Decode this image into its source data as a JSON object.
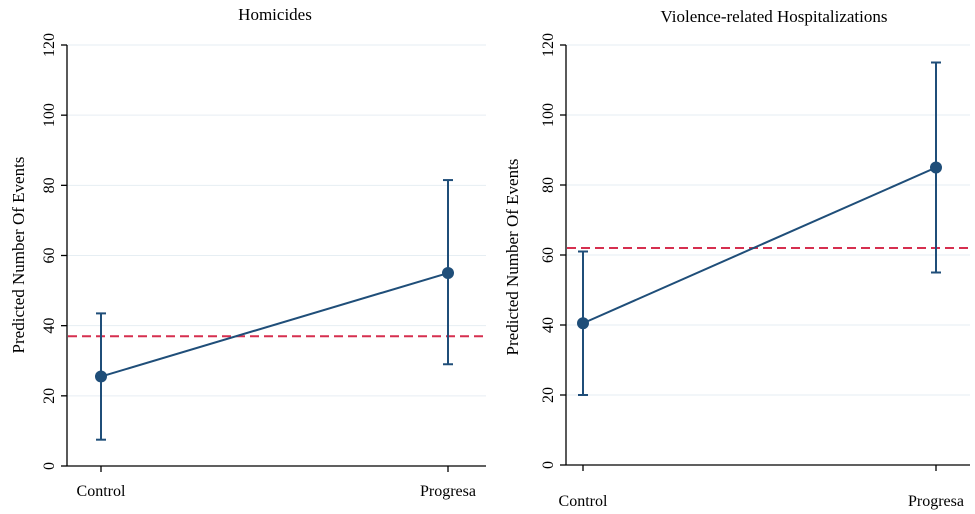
{
  "chart_data": [
    {
      "type": "line",
      "title": "Homicides",
      "xlabel": "",
      "ylabel": "Predicted Number Of Events",
      "categories": [
        "Control",
        "Progresa"
      ],
      "series": [
        {
          "values": [
            25.5,
            55.0
          ],
          "ci_low": [
            7.5,
            29.0
          ],
          "ci_high": [
            43.5,
            81.5
          ]
        }
      ],
      "reference_line": 37,
      "ylim": [
        0,
        120
      ],
      "yticks": [
        0,
        20,
        40,
        60,
        80,
        100,
        120
      ],
      "grid": true,
      "colors": {
        "series": "#1f4e79",
        "reference": "#d62f4f",
        "grid": "#e6eef3"
      }
    },
    {
      "type": "line",
      "title": "Violence-related Hospitalizations",
      "xlabel": "",
      "ylabel": "Predicted Number Of Events",
      "categories": [
        "Control",
        "Progresa"
      ],
      "series": [
        {
          "values": [
            40.5,
            85.0
          ],
          "ci_low": [
            20.0,
            55.0
          ],
          "ci_high": [
            61.0,
            115.0
          ]
        }
      ],
      "reference_line": 62,
      "ylim": [
        0,
        120
      ],
      "yticks": [
        0,
        20,
        40,
        60,
        80,
        100,
        120
      ],
      "grid": true,
      "colors": {
        "series": "#1f4e79",
        "reference": "#d62f4f",
        "grid": "#e6eef3"
      }
    }
  ]
}
